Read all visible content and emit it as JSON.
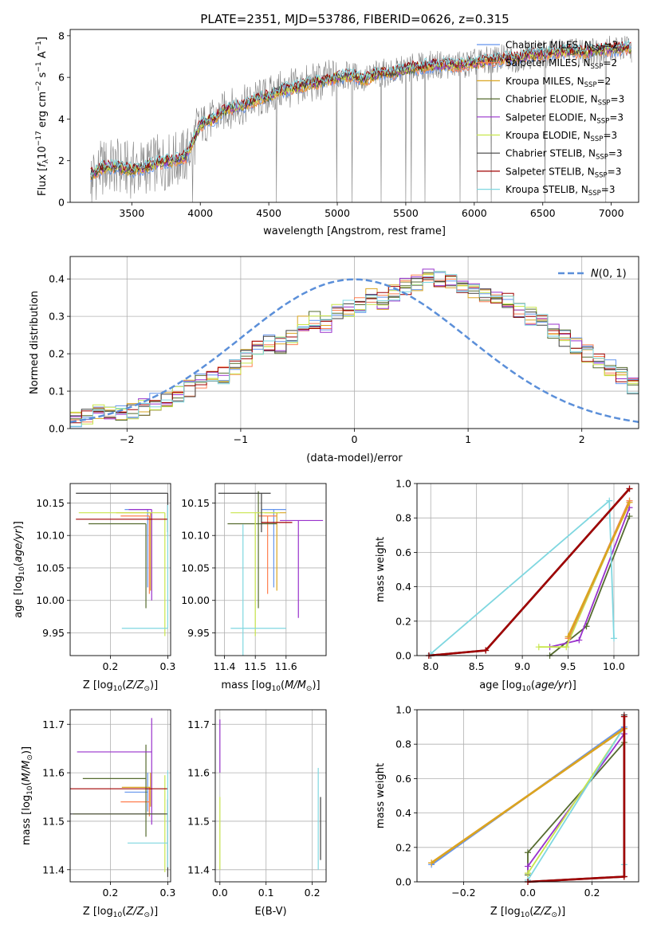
{
  "figure_title": "PLATE=2351, MJD=53786, FIBERID=0626, z=0.315",
  "colors": {
    "Chabrier MILES": "#6495ed",
    "Salpeter MILES": "#ff7f50",
    "Kroupa MILES": "#daa520",
    "Chabrier ELODIE": "#556b2f",
    "Salpeter ELODIE": "#9932cc",
    "Kroupa ELODIE": "#c8e64b",
    "Chabrier STELIB": "#404040",
    "Salpeter STELIB": "#a00000",
    "Kroupa STELIB": "#7fd7e0"
  },
  "chart_data": [
    {
      "id": "spectrum",
      "type": "line",
      "title": "PLATE=2351, MJD=53786, FIBERID=0626, z=0.315",
      "xlabel": "wavelength [Angstrom, rest frame]",
      "ylabel": "Flux [f_λ 10^−17 erg cm^−2 s^−1 A^−1]",
      "xlim": [
        3050,
        7200
      ],
      "ylim": [
        0,
        8.3
      ],
      "xticks": [
        3500,
        4000,
        4500,
        5000,
        5500,
        6000,
        6500,
        7000
      ],
      "yticks": [
        0,
        2,
        4,
        6,
        8
      ],
      "grid": false,
      "legend_position": "right",
      "legend": [
        "Chabrier MILES, N_SSP=2",
        "Salpeter MILES, N_SSP=2",
        "Kroupa MILES, N_SSP=2",
        "Chabrier ELODIE, N_SSP=3",
        "Salpeter ELODIE, N_SSP=3",
        "Kroupa ELODIE, N_SSP=3",
        "Chabrier STELIB, N_SSP=3",
        "Salpeter STELIB, N_SSP=3",
        "Kroupa STELIB, N_SSP=3"
      ],
      "data_series": {
        "name": "data",
        "color": "#808080"
      },
      "continuum_points": [
        [
          3200,
          1.3
        ],
        [
          3300,
          1.7
        ],
        [
          3400,
          1.7
        ],
        [
          3500,
          1.55
        ],
        [
          3600,
          1.7
        ],
        [
          3700,
          1.9
        ],
        [
          3800,
          2.0
        ],
        [
          3900,
          2.2
        ],
        [
          3950,
          3.0
        ],
        [
          4000,
          3.7
        ],
        [
          4100,
          4.0
        ],
        [
          4200,
          4.5
        ],
        [
          4300,
          4.6
        ],
        [
          4400,
          4.9
        ],
        [
          4500,
          5.1
        ],
        [
          4600,
          5.4
        ],
        [
          4700,
          5.5
        ],
        [
          4800,
          5.7
        ],
        [
          4900,
          5.8
        ],
        [
          5000,
          6.0
        ],
        [
          5100,
          6.1
        ],
        [
          5200,
          5.9
        ],
        [
          5300,
          6.2
        ],
        [
          5400,
          6.2
        ],
        [
          5500,
          6.4
        ],
        [
          5600,
          6.5
        ],
        [
          5700,
          6.6
        ],
        [
          5800,
          6.6
        ],
        [
          5900,
          6.6
        ],
        [
          6000,
          6.7
        ],
        [
          6100,
          6.8
        ],
        [
          6200,
          6.9
        ],
        [
          6300,
          6.9
        ],
        [
          6400,
          7.1
        ],
        [
          6500,
          7.1
        ],
        [
          6600,
          7.2
        ],
        [
          6700,
          7.25
        ],
        [
          6800,
          7.2
        ],
        [
          6900,
          7.3
        ],
        [
          7000,
          7.35
        ],
        [
          7150,
          7.4
        ]
      ]
    },
    {
      "id": "residuals",
      "type": "histogram",
      "xlabel": "(data-model)/error",
      "ylabel": "Normed distribution",
      "xlim": [
        -2.5,
        2.5
      ],
      "ylim": [
        0,
        0.46
      ],
      "xticks": [
        -2,
        -1,
        0,
        1,
        2
      ],
      "yticks": [
        0.0,
        0.1,
        0.2,
        0.3,
        0.4
      ],
      "grid": true,
      "bin_width": 0.1,
      "gaussian_label": "N(0,1)",
      "gaussian_color": "#5b8fd9",
      "legend_position": "top-right",
      "bins_approx": [
        0.02,
        0.03,
        0.04,
        0.04,
        0.04,
        0.05,
        0.06,
        0.07,
        0.08,
        0.09,
        0.11,
        0.13,
        0.13,
        0.14,
        0.16,
        0.19,
        0.21,
        0.23,
        0.22,
        0.24,
        0.28,
        0.29,
        0.28,
        0.31,
        0.32,
        0.33,
        0.35,
        0.34,
        0.36,
        0.38,
        0.39,
        0.41,
        0.4,
        0.39,
        0.38,
        0.37,
        0.36,
        0.35,
        0.34,
        0.31,
        0.3,
        0.28,
        0.26,
        0.24,
        0.22,
        0.2,
        0.18,
        0.16,
        0.14,
        0.11,
        0.09,
        0.08,
        0.07,
        0.07,
        0.07,
        0.06,
        0.06,
        0.05,
        0.05,
        0.04
      ]
    },
    {
      "id": "age_vs_Z",
      "type": "errorbar",
      "xlabel": "Z [log10(Z/Z⊙)]",
      "ylabel": "age  [log10(age/yr)]",
      "xlim": [
        0.13,
        0.305
      ],
      "ylim": [
        9.915,
        10.18
      ],
      "xticks": [
        0.2,
        0.3
      ],
      "yticks": [
        9.95,
        10.0,
        10.05,
        10.1,
        10.15
      ],
      "grid": true,
      "points": [
        {
          "name": "Chabrier MILES",
          "x": 0.265,
          "y": 10.14,
          "xerr": [
            0.04,
            0.0
          ],
          "yerr": [
            0.12,
            0.0
          ]
        },
        {
          "name": "Salpeter MILES",
          "x": 0.268,
          "y": 10.13,
          "xerr": [
            0.05,
            0.0
          ],
          "yerr": [
            0.12,
            0.0
          ]
        },
        {
          "name": "Kroupa MILES",
          "x": 0.27,
          "y": 10.135,
          "xerr": [
            0.06,
            0.0
          ],
          "yerr": [
            0.12,
            0.0
          ]
        },
        {
          "name": "Chabrier ELODIE",
          "x": 0.262,
          "y": 10.118,
          "xerr": [
            0.1,
            0.0
          ],
          "yerr": [
            0.13,
            0.0
          ]
        },
        {
          "name": "Salpeter ELODIE",
          "x": 0.272,
          "y": 10.14,
          "xerr": [
            0.04,
            0.0
          ],
          "yerr": [
            0.14,
            0.0
          ]
        },
        {
          "name": "Kroupa ELODIE",
          "x": 0.295,
          "y": 10.135,
          "xerr": [
            0.15,
            0.0
          ],
          "yerr": [
            0.19,
            0.0
          ]
        },
        {
          "name": "Chabrier STELIB",
          "x": 0.3,
          "y": 10.165,
          "xerr": [
            0.16,
            0.0
          ],
          "yerr": [
            0.06,
            0.0
          ]
        },
        {
          "name": "Salpeter STELIB",
          "x": 0.3,
          "y": 10.125,
          "xerr": [
            0.16,
            0.0
          ],
          "yerr": [
            0.0,
            0.0
          ]
        },
        {
          "name": "Kroupa STELIB",
          "x": 0.3,
          "y": 9.957,
          "xerr": [
            0.08,
            0.0
          ],
          "yerr": [
            0.0,
            0.19
          ]
        }
      ]
    },
    {
      "id": "age_vs_mass",
      "type": "errorbar",
      "xlabel": "mass [log10(M/M⊙)]",
      "ylabel": "",
      "xlim": [
        11.37,
        11.73
      ],
      "ylim": [
        9.915,
        10.18
      ],
      "xticks": [
        11.4,
        11.5,
        11.6
      ],
      "yticks": [
        9.95,
        10.0,
        10.05,
        10.1,
        10.15
      ],
      "grid": true,
      "points": [
        {
          "name": "Chabrier MILES",
          "x": 11.56,
          "y": 10.14,
          "xerr": [
            0.04,
            0.04
          ],
          "yerr": [
            0.12,
            0.0
          ]
        },
        {
          "name": "Salpeter MILES",
          "x": 11.54,
          "y": 10.13,
          "xerr": [
            0.03,
            0.03
          ],
          "yerr": [
            0.12,
            0.0
          ]
        },
        {
          "name": "Kroupa MILES",
          "x": 11.57,
          "y": 10.135,
          "xerr": [
            0.04,
            0.03
          ],
          "yerr": [
            0.12,
            0.0
          ]
        },
        {
          "name": "Chabrier ELODIE",
          "x": 11.51,
          "y": 10.118,
          "xerr": [
            0.1,
            0.06
          ],
          "yerr": [
            0.13,
            0.05
          ]
        },
        {
          "name": "Salpeter ELODIE",
          "x": 11.64,
          "y": 10.123,
          "xerr": [
            0.06,
            0.08
          ],
          "yerr": [
            0.15,
            0.0
          ]
        },
        {
          "name": "Kroupa ELODIE",
          "x": 11.5,
          "y": 10.135,
          "xerr": [
            0.08,
            0.08
          ],
          "yerr": [
            0.19,
            0.0
          ]
        },
        {
          "name": "Chabrier STELIB",
          "x": 11.52,
          "y": 10.165,
          "xerr": [
            0.14,
            0.03
          ],
          "yerr": [
            0.06,
            0.0
          ]
        },
        {
          "name": "Salpeter STELIB",
          "x": 11.57,
          "y": 10.12,
          "xerr": [
            0.05,
            0.05
          ],
          "yerr": [
            0.0,
            0.0
          ]
        },
        {
          "name": "Kroupa STELIB",
          "x": 11.46,
          "y": 9.957,
          "xerr": [
            0.04,
            0.14
          ],
          "yerr": [
            0.07,
            0.16
          ]
        }
      ]
    },
    {
      "id": "mass_weight_vs_age",
      "type": "line",
      "xlabel": "age  [log10(age/yr)]",
      "ylabel": "mass weight",
      "xlim": [
        7.85,
        10.27
      ],
      "ylim": [
        0,
        1.0
      ],
      "xticks": [
        8.0,
        8.5,
        9.0,
        9.5,
        10.0
      ],
      "yticks": [
        0.0,
        0.2,
        0.4,
        0.6,
        0.8,
        1.0
      ],
      "grid": true,
      "series": [
        {
          "name": "Chabrier MILES",
          "x": [
            9.5,
            10.17
          ],
          "y": [
            0.1,
            0.9
          ]
        },
        {
          "name": "Salpeter MILES",
          "x": [
            9.5,
            10.17
          ],
          "y": [
            0.1,
            0.9
          ]
        },
        {
          "name": "Kroupa MILES",
          "x": [
            9.5,
            10.17
          ],
          "y": [
            0.11,
            0.89
          ]
        },
        {
          "name": "Chabrier ELODIE",
          "x": [
            9.3,
            9.7,
            10.17
          ],
          "y": [
            0.0,
            0.17,
            0.81
          ]
        },
        {
          "name": "Salpeter ELODIE",
          "x": [
            9.3,
            9.62,
            10.17
          ],
          "y": [
            0.05,
            0.09,
            0.86
          ]
        },
        {
          "name": "Kroupa ELODIE",
          "x": [
            9.18,
            9.48,
            10.17
          ],
          "y": [
            0.05,
            0.05,
            0.9
          ]
        },
        {
          "name": "Chabrier STELIB",
          "x": [
            7.98,
            8.6,
            10.17
          ],
          "y": [
            0.0,
            0.03,
            0.97
          ]
        },
        {
          "name": "Salpeter STELIB",
          "x": [
            7.98,
            8.6,
            10.17
          ],
          "y": [
            0.0,
            0.03,
            0.97
          ]
        },
        {
          "name": "Kroupa STELIB",
          "x": [
            8.0,
            9.95,
            10.0
          ],
          "y": [
            0.01,
            0.9,
            0.1
          ]
        }
      ]
    },
    {
      "id": "mass_vs_Z",
      "type": "errorbar",
      "xlabel": "Z [log10(Z/Z⊙)]",
      "ylabel": "mass [log10(M/M⊙)]",
      "xlim": [
        0.13,
        0.305
      ],
      "ylim": [
        11.375,
        11.73
      ],
      "xticks": [
        0.2,
        0.3
      ],
      "yticks": [
        11.4,
        11.5,
        11.6,
        11.7
      ],
      "grid": true,
      "points": [
        {
          "name": "Chabrier MILES",
          "x": 0.265,
          "y": 11.56,
          "xerr": [
            0.04,
            0.0
          ],
          "yerr": [
            0.04,
            0.04
          ]
        },
        {
          "name": "Salpeter MILES",
          "x": 0.268,
          "y": 11.54,
          "xerr": [
            0.05,
            0.0
          ],
          "yerr": [
            0.03,
            0.03
          ]
        },
        {
          "name": "Kroupa MILES",
          "x": 0.27,
          "y": 11.57,
          "xerr": [
            0.05,
            0.0
          ],
          "yerr": [
            0.04,
            0.03
          ]
        },
        {
          "name": "Chabrier ELODIE",
          "x": 0.262,
          "y": 11.588,
          "xerr": [
            0.11,
            0.0
          ],
          "yerr": [
            0.12,
            0.07
          ]
        },
        {
          "name": "Salpeter ELODIE",
          "x": 0.272,
          "y": 11.643,
          "xerr": [
            0.13,
            0.0
          ],
          "yerr": [
            0.15,
            0.07
          ]
        },
        {
          "name": "Kroupa ELODIE",
          "x": 0.295,
          "y": 11.515,
          "xerr": [
            0.16,
            0.0
          ],
          "yerr": [
            0.12,
            0.08
          ]
        },
        {
          "name": "Chabrier STELIB",
          "x": 0.3,
          "y": 11.515,
          "xerr": [
            0.17,
            0.0
          ],
          "yerr": [
            0.13,
            0.03
          ]
        },
        {
          "name": "Salpeter STELIB",
          "x": 0.3,
          "y": 11.567,
          "xerr": [
            0.17,
            0.0
          ],
          "yerr": [
            0.0,
            0.0
          ]
        },
        {
          "name": "Kroupa STELIB",
          "x": 0.3,
          "y": 11.455,
          "xerr": [
            0.07,
            0.0
          ],
          "yerr": [
            0.05,
            0.15
          ]
        }
      ]
    },
    {
      "id": "mass_vs_ebv",
      "type": "errorbar",
      "xlabel": "E(B-V)",
      "ylabel": "",
      "xlim": [
        -0.01,
        0.23
      ],
      "ylim": [
        11.375,
        11.73
      ],
      "xticks": [
        0.0,
        0.1,
        0.2
      ],
      "yticks": [
        11.4,
        11.5,
        11.6,
        11.7
      ],
      "grid": true,
      "points": [
        {
          "name": "Salpeter ELODIE",
          "x": 0.0,
          "y": 11.65,
          "xerr": [
            0.0,
            0.0
          ],
          "yerr": [
            0.05,
            0.06
          ]
        },
        {
          "name": "Kroupa ELODIE",
          "x": 0.0,
          "y": 11.5,
          "xerr": [
            0.0,
            0.0
          ],
          "yerr": [
            0.1,
            0.05
          ]
        },
        {
          "name": "Kroupa STELIB",
          "x": 0.213,
          "y": 11.5,
          "xerr": [
            0.0,
            0.0
          ],
          "yerr": [
            0.1,
            0.11
          ]
        },
        {
          "name": "Chabrier STELIB",
          "x": 0.218,
          "y": 11.47,
          "xerr": [
            0.0,
            0.0
          ],
          "yerr": [
            0.05,
            0.08
          ]
        }
      ]
    },
    {
      "id": "mass_weight_vs_Z",
      "type": "line",
      "xlabel": "Z [log10(Z/Z⊙)]",
      "ylabel": "mass weight",
      "xlim": [
        -0.345,
        0.345
      ],
      "ylim": [
        0,
        1.0
      ],
      "xticks": [
        -0.2,
        0.0,
        0.2
      ],
      "yticks": [
        0.0,
        0.2,
        0.4,
        0.6,
        0.8,
        1.0
      ],
      "grid": true,
      "series": [
        {
          "name": "Chabrier MILES",
          "x": [
            -0.3,
            0.3
          ],
          "y": [
            0.1,
            0.9
          ]
        },
        {
          "name": "Salpeter MILES",
          "x": [
            -0.3,
            0.3
          ],
          "y": [
            0.11,
            0.89
          ]
        },
        {
          "name": "Kroupa MILES",
          "x": [
            -0.3,
            0.3
          ],
          "y": [
            0.11,
            0.89
          ]
        },
        {
          "name": "Chabrier ELODIE",
          "x": [
            0.0,
            0.0,
            0.3
          ],
          "y": [
            0.04,
            0.17,
            0.81
          ]
        },
        {
          "name": "Salpeter ELODIE",
          "x": [
            0.0,
            0.0,
            0.3
          ],
          "y": [
            0.05,
            0.09,
            0.86
          ]
        },
        {
          "name": "Kroupa ELODIE",
          "x": [
            0.0,
            0.0,
            0.3
          ],
          "y": [
            0.05,
            0.05,
            0.9
          ]
        },
        {
          "name": "Chabrier STELIB",
          "x": [
            0.0,
            0.3,
            0.3
          ],
          "y": [
            0.0,
            0.03,
            0.97
          ]
        },
        {
          "name": "Salpeter STELIB",
          "x": [
            0.0,
            0.3,
            0.3
          ],
          "y": [
            0.0,
            0.03,
            0.96
          ]
        },
        {
          "name": "Kroupa STELIB",
          "x": [
            0.0,
            0.3,
            0.3
          ],
          "y": [
            0.01,
            0.9,
            0.1
          ]
        }
      ]
    }
  ]
}
